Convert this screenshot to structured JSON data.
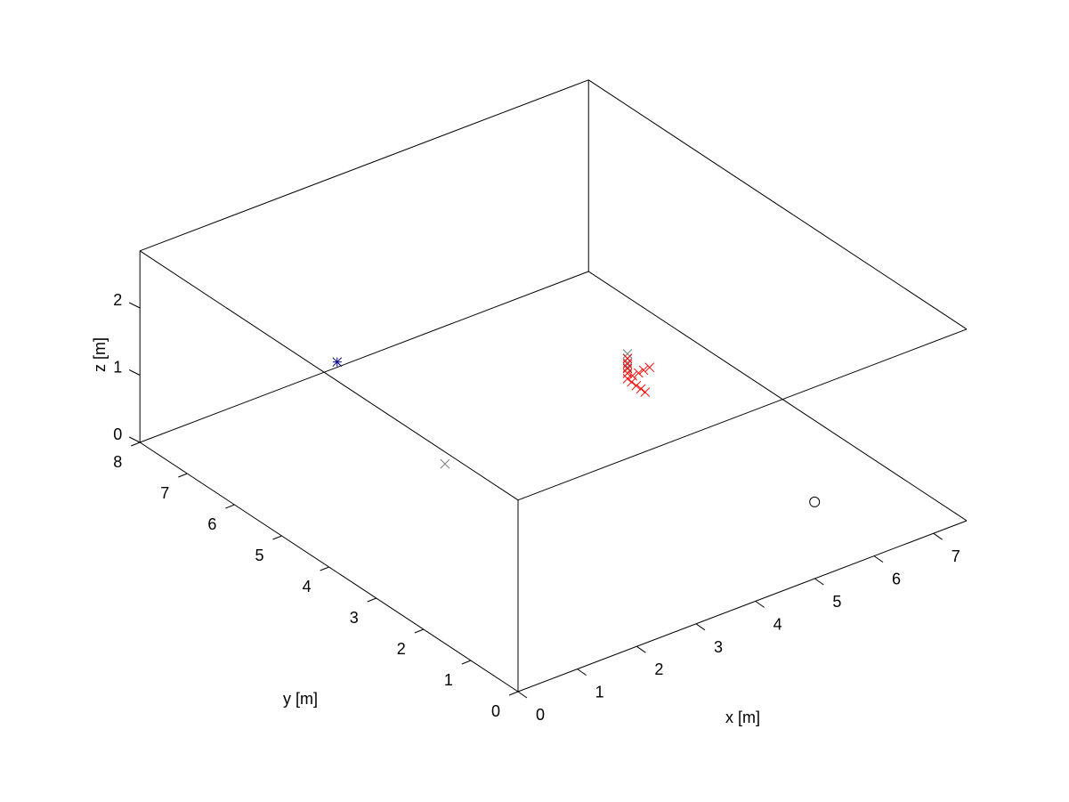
{
  "chart_data": {
    "type": "scatter3d",
    "title": "",
    "xlabel": "x [m]",
    "ylabel": "y [m]",
    "zlabel": "z [m]",
    "xlim": [
      0,
      7.56
    ],
    "ylim": [
      0,
      8
    ],
    "zlim": [
      0,
      2.85
    ],
    "xticks": [
      "0",
      "1",
      "2",
      "3",
      "4",
      "5",
      "6",
      "7"
    ],
    "yticks": [
      "0",
      "1",
      "2",
      "3",
      "4",
      "5",
      "6",
      "7",
      "8"
    ],
    "zticks": [
      "0",
      "1",
      "2"
    ],
    "grid": false,
    "box": true,
    "series": [
      {
        "marker": "asterisk",
        "color": "#00008b",
        "points": [
          [
            2.32,
            6.74,
            1.0
          ]
        ]
      },
      {
        "marker": "cross",
        "color": "#808080",
        "points": [
          [
            2.91,
            5.2,
            0.0
          ],
          [
            5.15,
            4.15,
            1.37
          ],
          [
            5.15,
            4.15,
            1.3
          ],
          [
            5.15,
            4.15,
            1.24
          ],
          [
            5.15,
            4.15,
            1.17
          ]
        ]
      },
      {
        "marker": "circle",
        "color": "#000000",
        "points": [
          [
            6.24,
            1.56,
            0.0
          ]
        ]
      },
      {
        "marker": "cross",
        "color": "#ff0000",
        "points": [
          [
            5.15,
            4.15,
            1.3
          ],
          [
            5.15,
            4.15,
            1.22
          ],
          [
            5.15,
            4.15,
            1.15
          ],
          [
            5.15,
            4.15,
            1.08
          ],
          [
            5.15,
            4.15,
            1.0
          ],
          [
            5.25,
            4.17,
            1.0
          ],
          [
            5.36,
            4.18,
            1.0
          ],
          [
            5.46,
            4.2,
            1.0
          ],
          [
            5.57,
            4.21,
            1.0
          ],
          [
            5.14,
            4.05,
            1.0
          ],
          [
            5.13,
            3.94,
            1.0
          ],
          [
            5.13,
            3.84,
            1.0
          ],
          [
            5.12,
            3.74,
            1.0
          ]
        ]
      }
    ]
  }
}
